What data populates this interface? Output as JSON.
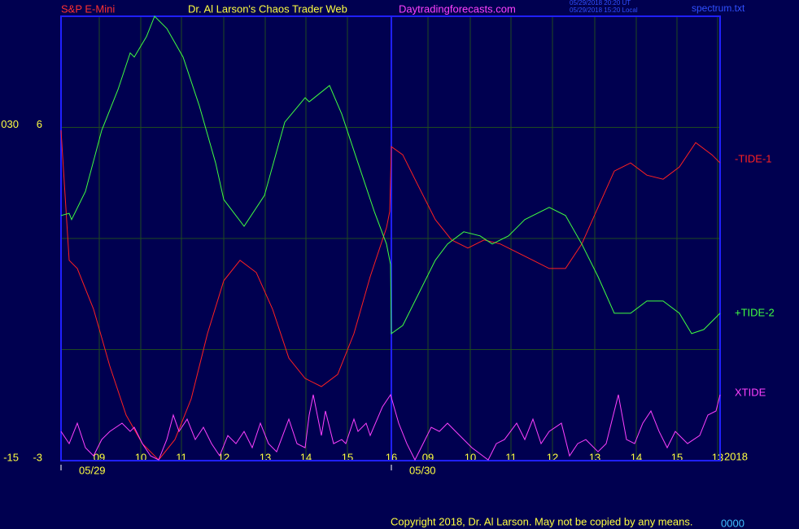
{
  "chart_data": {
    "type": "line",
    "header": {
      "symbol": "S&P E-Mini",
      "title": "Dr. Al Larson's Chaos Trader Web",
      "site": "Daytradingforecasts.com",
      "time_ut": "05/29/2018 20:20 UT",
      "time_local": "05/29/2018 15:20 Local",
      "file": "spectrum.txt"
    },
    "year": "2018",
    "footer": "Copyright 2018, Dr. Al Larson. May not be copied by any means.",
    "footer_code": "0000",
    "xlim": [
      0,
      81
    ],
    "xticks": [
      {
        "value": 4.7,
        "label": "09"
      },
      {
        "value": 9.8,
        "label": "10"
      },
      {
        "value": 14.8,
        "label": "11"
      },
      {
        "value": 20,
        "label": "12"
      },
      {
        "value": 25.1,
        "label": "13"
      },
      {
        "value": 30.1,
        "label": "14"
      },
      {
        "value": 35.2,
        "label": "15"
      },
      {
        "value": 40.6,
        "label": "16"
      },
      {
        "value": 45.1,
        "label": "09"
      },
      {
        "value": 50.3,
        "label": "10"
      },
      {
        "value": 55.3,
        "label": "11"
      },
      {
        "value": 60.4,
        "label": "12"
      },
      {
        "value": 65.6,
        "label": "13"
      },
      {
        "value": 70.7,
        "label": "14"
      },
      {
        "value": 75.7,
        "label": "15"
      },
      {
        "value": 80.7,
        "label": "13"
      }
    ],
    "date_ticks": [
      {
        "value": 0,
        "label": "05/29"
      },
      {
        "value": 40.6,
        "label": "05/30"
      }
    ],
    "ylim": [
      -3,
      9
    ],
    "yticks": [
      -3,
      6
    ],
    "ygrid": [
      0,
      3,
      6
    ],
    "y2lim": [
      -15,
      45
    ],
    "y2ticks": [
      -15,
      {
        "value": 30,
        "label": "030"
      }
    ],
    "series": [
      {
        "name": "-TIDE-1",
        "color": "#ff2020",
        "x": [
          0,
          1,
          2,
          4,
          6,
          8,
          10,
          12,
          14,
          16,
          18,
          20,
          22,
          24,
          26,
          28,
          30,
          32,
          34,
          36,
          38,
          40,
          40.4,
          40.6,
          42,
          44,
          46,
          48,
          50,
          52,
          54,
          56,
          58,
          60,
          62,
          64,
          66,
          68,
          70,
          72,
          74,
          76,
          78,
          80,
          81
        ],
        "values": [
          5.92,
          2.41,
          2.19,
          1.09,
          -0.45,
          -1.77,
          -2.54,
          -2.98,
          -2.43,
          -1.33,
          0.43,
          1.86,
          2.41,
          2.08,
          1.09,
          -0.23,
          -0.78,
          -1.0,
          -0.67,
          0.43,
          1.97,
          3.29,
          3.73,
          5.48,
          5.26,
          4.38,
          3.51,
          2.96,
          2.74,
          2.96,
          2.85,
          2.63,
          2.41,
          2.19,
          2.19,
          2.85,
          3.84,
          4.82,
          5.04,
          4.71,
          4.6,
          4.93,
          5.59,
          5.26,
          5.04
        ]
      },
      {
        "name": "+TIDE-2",
        "color": "#40ff40",
        "x": [
          0,
          1,
          1.3,
          3,
          5,
          7,
          8.5,
          9,
          10.5,
          11.5,
          13,
          15,
          17,
          19,
          20,
          22.5,
          25,
          27.5,
          30,
          30.5,
          33,
          34.5,
          36.5,
          38.5,
          40,
          40.5,
          40.6,
          42,
          44,
          46,
          47.5,
          49.5,
          51.5,
          53,
          55,
          57,
          60,
          62,
          64,
          66,
          68,
          70,
          72,
          74,
          76,
          77.5,
          79,
          81
        ],
        "values": [
          3.62,
          3.68,
          3.51,
          4.27,
          5.92,
          7.02,
          8.01,
          7.9,
          8.45,
          9.0,
          8.67,
          7.9,
          6.58,
          5.04,
          4.05,
          3.33,
          4.16,
          6.14,
          6.8,
          6.69,
          7.13,
          6.36,
          5.04,
          3.73,
          2.85,
          2.3,
          0.43,
          0.65,
          1.53,
          2.41,
          2.85,
          3.18,
          3.07,
          2.85,
          3.07,
          3.51,
          3.84,
          3.62,
          2.85,
          1.97,
          0.98,
          0.98,
          1.31,
          1.31,
          0.98,
          0.43,
          0.54,
          0.98
        ]
      },
      {
        "name": "XTIDE",
        "color": "#ff40ff",
        "x": [
          0,
          1,
          2,
          3,
          4,
          5,
          6,
          7.5,
          8.5,
          9,
          10,
          11,
          12,
          13,
          13.8,
          14.5,
          15.5,
          16.5,
          17.5,
          18.5,
          19.5,
          20.5,
          21.5,
          22.5,
          23.5,
          24.5,
          25.5,
          26.5,
          28,
          29,
          30,
          30.5,
          31,
          32,
          32.5,
          33.5,
          34.5,
          35,
          36,
          36.5,
          37.5,
          38,
          39.5,
          40.5,
          41.5,
          42.5,
          43.5,
          44.5,
          45.5,
          46.5,
          47.5,
          48.5,
          49.5,
          50.5,
          52.5,
          53.5,
          54.5,
          56,
          57,
          58,
          59,
          60,
          61.5,
          62.5,
          63.5,
          64.5,
          66,
          67,
          68.5,
          69.5,
          70.5,
          71.5,
          72.5,
          73.5,
          74.5,
          75.5,
          77,
          78.5,
          79.5,
          80.5,
          81
        ],
        "values": [
          -2.21,
          -2.54,
          -1.99,
          -2.65,
          -2.87,
          -2.43,
          -2.21,
          -1.99,
          -2.21,
          -2.1,
          -2.54,
          -2.87,
          -2.98,
          -2.43,
          -1.77,
          -2.21,
          -1.88,
          -2.43,
          -2.1,
          -2.54,
          -2.87,
          -2.32,
          -2.54,
          -2.21,
          -2.65,
          -1.99,
          -2.54,
          -2.76,
          -1.88,
          -2.54,
          -2.65,
          -1.77,
          -1.22,
          -2.32,
          -1.66,
          -2.54,
          -2.43,
          -2.54,
          -1.88,
          -2.21,
          -1.99,
          -2.32,
          -1.55,
          -1.22,
          -1.99,
          -2.54,
          -2.98,
          -2.54,
          -2.1,
          -2.21,
          -1.99,
          -2.21,
          -2.43,
          -2.65,
          -2.98,
          -2.54,
          -2.43,
          -1.99,
          -2.43,
          -1.88,
          -2.54,
          -2.21,
          -1.99,
          -2.87,
          -2.54,
          -2.43,
          -2.76,
          -2.54,
          -1.22,
          -2.43,
          -2.54,
          -1.99,
          -1.66,
          -2.21,
          -2.65,
          -2.21,
          -2.54,
          -2.32,
          -1.77,
          -1.66,
          -1.22
        ]
      }
    ]
  }
}
